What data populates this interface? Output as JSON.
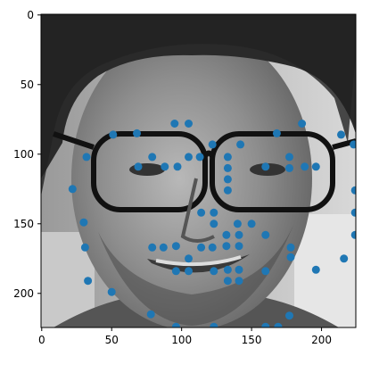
{
  "chart_data": {
    "type": "scatter",
    "title": "",
    "xlabel": "",
    "ylabel": "",
    "xlim": [
      -0.5,
      224.5
    ],
    "ylim": [
      224.5,
      -0.5
    ],
    "y_inverted": true,
    "grid": false,
    "background_image": "grayscale-face-photo",
    "point_color": "#1f77b4",
    "xticks": [
      0,
      50,
      100,
      150,
      200
    ],
    "yticks": [
      0,
      50,
      100,
      150,
      200
    ],
    "xtick_labels": [
      "0",
      "50",
      "100",
      "150",
      "200"
    ],
    "ytick_labels": [
      "0",
      "50",
      "100",
      "150",
      "200"
    ],
    "points": [
      [
        51,
        86
      ],
      [
        68,
        85
      ],
      [
        95,
        78
      ],
      [
        105,
        78
      ],
      [
        122,
        93
      ],
      [
        142,
        93
      ],
      [
        168,
        85
      ],
      [
        186,
        78
      ],
      [
        214,
        86
      ],
      [
        223,
        93
      ],
      [
        32,
        102
      ],
      [
        69,
        109
      ],
      [
        79,
        102
      ],
      [
        88,
        109
      ],
      [
        97,
        109
      ],
      [
        105,
        102
      ],
      [
        113,
        102
      ],
      [
        133,
        102
      ],
      [
        133,
        110
      ],
      [
        133,
        118
      ],
      [
        133,
        126
      ],
      [
        160,
        109
      ],
      [
        177,
        102
      ],
      [
        177,
        110
      ],
      [
        188,
        109
      ],
      [
        196,
        109
      ],
      [
        224,
        126
      ],
      [
        22,
        125
      ],
      [
        30,
        149
      ],
      [
        114,
        142
      ],
      [
        123,
        142
      ],
      [
        123,
        150
      ],
      [
        140,
        150
      ],
      [
        150,
        150
      ],
      [
        224,
        142
      ],
      [
        224,
        158
      ],
      [
        31,
        167
      ],
      [
        79,
        167
      ],
      [
        87,
        167
      ],
      [
        96,
        166
      ],
      [
        105,
        175
      ],
      [
        114,
        167
      ],
      [
        122,
        167
      ],
      [
        132,
        166
      ],
      [
        132,
        158
      ],
      [
        141,
        166
      ],
      [
        141,
        158
      ],
      [
        160,
        158
      ],
      [
        178,
        167
      ],
      [
        178,
        174
      ],
      [
        216,
        175
      ],
      [
        33,
        191
      ],
      [
        50,
        199
      ],
      [
        96,
        184
      ],
      [
        105,
        184
      ],
      [
        123,
        184
      ],
      [
        133,
        183
      ],
      [
        133,
        191
      ],
      [
        141,
        183
      ],
      [
        141,
        191
      ],
      [
        160,
        184
      ],
      [
        196,
        183
      ],
      [
        78,
        215
      ],
      [
        96,
        224
      ],
      [
        123,
        224
      ],
      [
        160,
        224
      ],
      [
        169,
        224
      ],
      [
        177,
        216
      ]
    ]
  }
}
